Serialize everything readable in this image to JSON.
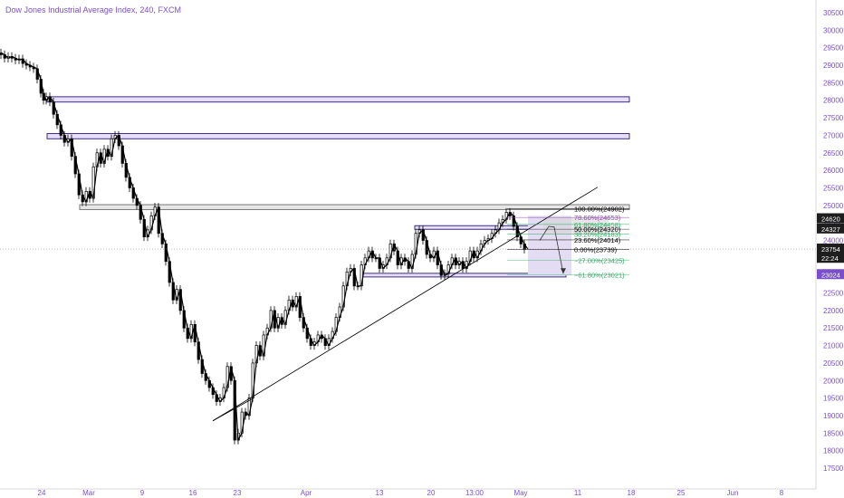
{
  "header": {
    "title": "Dow Jones Industrial Average Index, 240, FXCM"
  },
  "chart_data": {
    "type": "candlestick",
    "title": "Dow Jones Industrial Average Index, 240, FXCM",
    "ylim": [
      17250,
      30750
    ],
    "y_ticks": [
      17500,
      18000,
      18500,
      19000,
      19500,
      20000,
      20500,
      21000,
      21500,
      22000,
      22500,
      23000,
      23500,
      24000,
      24500,
      25000,
      25500,
      26000,
      26500,
      27000,
      27500,
      28000,
      28500,
      29000,
      29500,
      30000,
      30500
    ],
    "x_ticks": [
      "24",
      "Mar",
      "9",
      "16",
      "23",
      "Apr",
      "13",
      "20",
      "13:00",
      "May",
      "11",
      "18",
      "25",
      "Jun",
      "8"
    ],
    "grid": false,
    "price_path": [
      [
        0,
        29350
      ],
      [
        4,
        29300
      ],
      [
        8,
        29200
      ],
      [
        12,
        29250
      ],
      [
        16,
        29200
      ],
      [
        20,
        29150
      ],
      [
        24,
        29180
      ],
      [
        28,
        29050
      ],
      [
        32,
        29000
      ],
      [
        36,
        28950
      ],
      [
        40,
        28900
      ],
      [
        44,
        28600
      ],
      [
        47,
        28200
      ],
      [
        50,
        28000
      ],
      [
        54,
        28100
      ],
      [
        58,
        27950
      ],
      [
        62,
        27600
      ],
      [
        66,
        27300
      ],
      [
        70,
        27000
      ],
      [
        74,
        26800
      ],
      [
        78,
        26900
      ],
      [
        82,
        26400
      ],
      [
        86,
        25900
      ],
      [
        90,
        25300
      ],
      [
        94,
        25100
      ],
      [
        98,
        25400
      ],
      [
        102,
        25200
      ],
      [
        106,
        26100
      ],
      [
        110,
        26500
      ],
      [
        114,
        26200
      ],
      [
        118,
        26600
      ],
      [
        122,
        26400
      ],
      [
        126,
        26900
      ],
      [
        130,
        27000
      ],
      [
        134,
        26700
      ],
      [
        138,
        26200
      ],
      [
        142,
        25800
      ],
      [
        146,
        25500
      ],
      [
        150,
        25200
      ],
      [
        154,
        25000
      ],
      [
        158,
        24600
      ],
      [
        162,
        24100
      ],
      [
        166,
        24300
      ],
      [
        170,
        24700
      ],
      [
        174,
        24950
      ],
      [
        178,
        24200
      ],
      [
        182,
        23900
      ],
      [
        186,
        23400
      ],
      [
        190,
        22800
      ],
      [
        194,
        22300
      ],
      [
        198,
        22600
      ],
      [
        202,
        22000
      ],
      [
        206,
        21500
      ],
      [
        210,
        21200
      ],
      [
        214,
        21600
      ],
      [
        218,
        21100
      ],
      [
        222,
        20600
      ],
      [
        226,
        20200
      ],
      [
        230,
        20000
      ],
      [
        234,
        19800
      ],
      [
        238,
        19600
      ],
      [
        242,
        19400
      ],
      [
        246,
        19500
      ],
      [
        250,
        19800
      ],
      [
        254,
        20400
      ],
      [
        258,
        20000
      ],
      [
        262,
        18300
      ],
      [
        266,
        18500
      ],
      [
        270,
        19100
      ],
      [
        274,
        19000
      ],
      [
        278,
        19500
      ],
      [
        282,
        20500
      ],
      [
        286,
        21000
      ],
      [
        290,
        20700
      ],
      [
        294,
        21300
      ],
      [
        298,
        21500
      ],
      [
        302,
        22000
      ],
      [
        306,
        21500
      ],
      [
        310,
        21800
      ],
      [
        314,
        21600
      ],
      [
        318,
        22000
      ],
      [
        322,
        22300
      ],
      [
        326,
        22100
      ],
      [
        330,
        22400
      ],
      [
        334,
        21800
      ],
      [
        338,
        21500
      ],
      [
        342,
        21200
      ],
      [
        346,
        21000
      ],
      [
        350,
        21100
      ],
      [
        354,
        21300
      ],
      [
        358,
        21200
      ],
      [
        362,
        21000
      ],
      [
        366,
        21200
      ],
      [
        370,
        21400
      ],
      [
        374,
        21800
      ],
      [
        378,
        22100
      ],
      [
        382,
        22700
      ],
      [
        386,
        23100
      ],
      [
        390,
        23200
      ],
      [
        394,
        22700
      ],
      [
        398,
        22700
      ],
      [
        402,
        23300
      ],
      [
        406,
        23500
      ],
      [
        410,
        23700
      ],
      [
        414,
        23500
      ],
      [
        418,
        23500
      ],
      [
        422,
        23200
      ],
      [
        426,
        23300
      ],
      [
        430,
        23500
      ],
      [
        434,
        23900
      ],
      [
        438,
        23700
      ],
      [
        442,
        23300
      ],
      [
        446,
        23500
      ],
      [
        450,
        23400
      ],
      [
        454,
        23200
      ],
      [
        458,
        23600
      ],
      [
        462,
        24200
      ],
      [
        466,
        24300
      ],
      [
        470,
        24000
      ],
      [
        474,
        23600
      ],
      [
        478,
        23500
      ],
      [
        482,
        23700
      ],
      [
        486,
        23300
      ],
      [
        490,
        23000
      ],
      [
        494,
        23050
      ],
      [
        498,
        23300
      ],
      [
        502,
        23500
      ],
      [
        506,
        23300
      ],
      [
        510,
        23400
      ],
      [
        514,
        23200
      ],
      [
        518,
        23400
      ],
      [
        522,
        23700
      ],
      [
        526,
        23500
      ],
      [
        530,
        23700
      ],
      [
        534,
        23900
      ],
      [
        538,
        24000
      ],
      [
        542,
        24050
      ],
      [
        546,
        24200
      ],
      [
        550,
        24300
      ],
      [
        554,
        24500
      ],
      [
        558,
        24600
      ],
      [
        562,
        24800
      ],
      [
        566,
        24700
      ],
      [
        570,
        24400
      ],
      [
        574,
        24100
      ],
      [
        578,
        23900
      ],
      [
        582,
        23750
      ]
    ],
    "horizontal_zones": [
      {
        "y_top": 28100,
        "y_bottom": 27950,
        "x_end": 695
      },
      {
        "y_top": 27050,
        "y_bottom": 26900,
        "x_end": 695
      },
      {
        "y_top": 25020,
        "y_bottom": 24880,
        "x_end": 695,
        "gray": true
      },
      {
        "y_top": 24420,
        "y_bottom": 24330,
        "x_start": 458,
        "x_end": 600
      },
      {
        "y_top": 23060,
        "y_bottom": 22980,
        "x_start": 400,
        "x_end": 625
      }
    ],
    "trendlines": [
      {
        "from": [
          235,
          18850
        ],
        "to": [
          660,
          25520
        ]
      },
      {
        "from": [
          235,
          18850
        ],
        "to": [
          280,
          19500
        ]
      }
    ],
    "fibonacci": {
      "anchor_100": 24902,
      "levels": [
        {
          "label": "100.00%(24902)",
          "value": 24902,
          "color": "#000000"
        },
        {
          "label": "78.60%(24653)",
          "value": 24653,
          "color": "#8e44ad"
        },
        {
          "label": "61.80%(24458)",
          "value": 24458,
          "color": "#27ae60"
        },
        {
          "label": "50.00%(24320)",
          "value": 24320,
          "color": "#000000"
        },
        {
          "label": "38.20%(24183)",
          "value": 24183,
          "color": "#27ae60"
        },
        {
          "label": "23.60%(24014)",
          "value": 24014,
          "color": "#000000"
        },
        {
          "label": "0.00%(23739)",
          "value": 23739,
          "color": "#000000"
        },
        {
          "label": "−27.00%(23425)",
          "value": 23425,
          "color": "#27ae60"
        },
        {
          "label": "−61.80%(23021)",
          "value": 23021,
          "color": "#27ae60"
        }
      ]
    },
    "projection_box": {
      "y_top": 24700,
      "y_bottom": 23000
    },
    "projection_arrow": [
      [
        596,
        24000
      ],
      [
        606,
        24400
      ],
      [
        612,
        24380
      ],
      [
        622,
        23050
      ]
    ],
    "price_labels": [
      {
        "text": "24620",
        "value": 24620,
        "bg": "#1e1e1e",
        "fg": "#ffffff"
      },
      {
        "text": "24327",
        "value": 24327,
        "bg": "#1e1e1e",
        "fg": "#ffffff"
      },
      {
        "text": "23754",
        "value": 23754,
        "bg": "#1e1e1e",
        "fg": "#ffffff"
      },
      {
        "text": "22:24",
        "value": 23490,
        "bg": "#1e1e1e",
        "fg": "#ffffff"
      },
      {
        "text": "23024",
        "value": 23024,
        "bg": "#7a4fc9",
        "fg": "#ffffff"
      }
    ],
    "current_price_line": 23754
  },
  "colors": {
    "axis_text": "#7a4fc9",
    "candle": "#000000",
    "zone_fill": "#e6defa",
    "zone_border": "#3d2f7d",
    "gray_zone_fill": "#e7e7e7",
    "projection_fill": "#e3dcf3"
  }
}
